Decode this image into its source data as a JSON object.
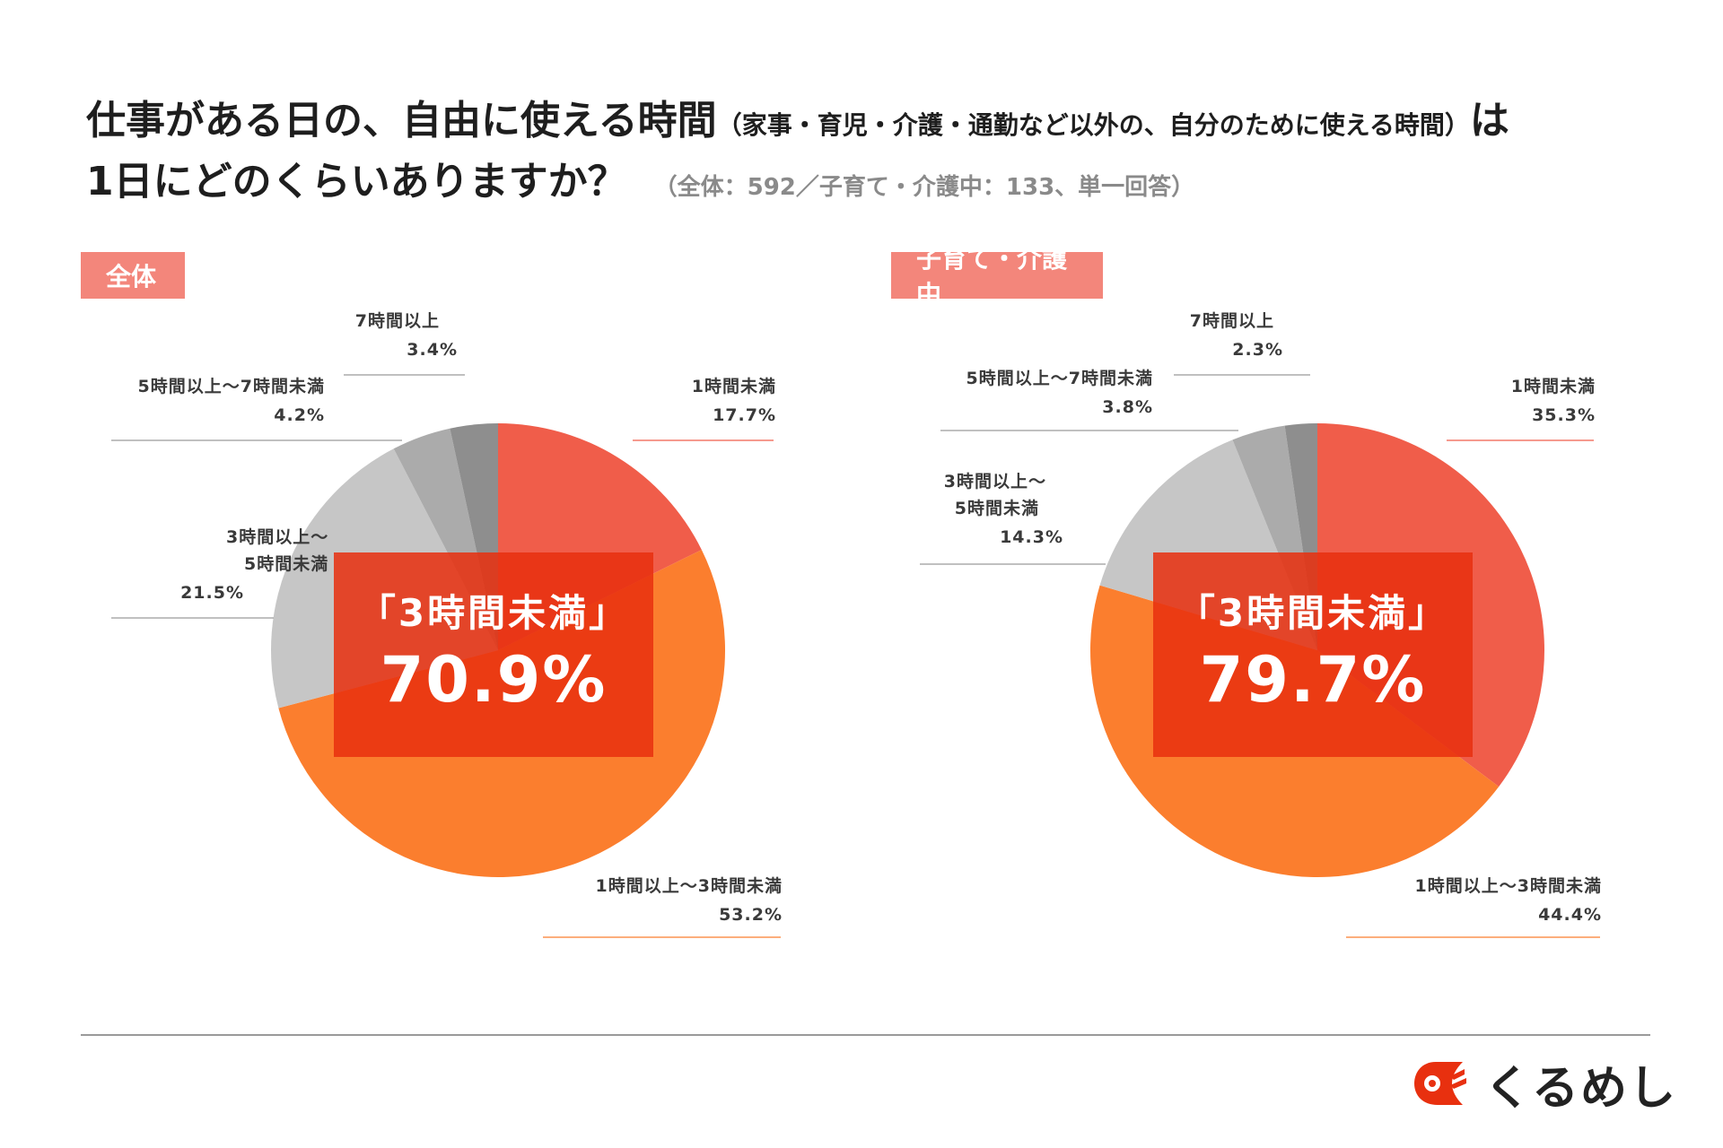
{
  "title": {
    "line1_main": "仕事がある日の、自由に使える時間",
    "line1_paren": "（家事・育児・介護・通勤など以外の、自分のために使える時間）",
    "line1_end": "は",
    "line2": "1日にどのくらいありますか？",
    "subtitle": "（全体：592／子育て・介護中：133、単一回答）"
  },
  "colors": {
    "slice1": "#f05d4a",
    "slice2": "#fb7e2e",
    "slice3": "#c6c6c6",
    "slice4": "#ababab",
    "slice5": "#8e8e8e",
    "badge": "#f3867b",
    "highlight": "#e8300f"
  },
  "chart_data": [
    {
      "type": "pie",
      "title": "全体",
      "categories": [
        "1時間未満",
        "1時間以上～3時間未満",
        "3時間以上～5時間未満",
        "5時間以上～7時間未満",
        "7時間以上"
      ],
      "values": [
        17.7,
        53.2,
        21.5,
        4.2,
        3.4
      ],
      "value_labels": [
        "17.7%",
        "53.2%",
        "21.5%",
        "4.2%",
        "3.4%"
      ],
      "label_lines": [
        [
          "1時間未満"
        ],
        [
          "1時間以上～3時間未満"
        ],
        [
          "3時間以上～",
          "5時間未満"
        ],
        [
          "5時間以上～7時間未満"
        ],
        [
          "7時間以上"
        ]
      ],
      "highlight_label": "「3時間未満」",
      "highlight_value": "70.9%"
    },
    {
      "type": "pie",
      "title": "子育て・介護中",
      "categories": [
        "1時間未満",
        "1時間以上～3時間未満",
        "3時間以上～5時間未満",
        "5時間以上～7時間未満",
        "7時間以上"
      ],
      "values": [
        35.3,
        44.4,
        14.3,
        3.8,
        2.3
      ],
      "value_labels": [
        "35.3%",
        "44.4%",
        "14.3%",
        "3.8%",
        "2.3%"
      ],
      "label_lines": [
        [
          "1時間未満"
        ],
        [
          "1時間以上～3時間未満"
        ],
        [
          "3時間以上～",
          "5時間未満"
        ],
        [
          "5時間以上～7時間未満"
        ],
        [
          "7時間以上"
        ]
      ],
      "highlight_label": "「3時間未満」",
      "highlight_value": "79.7%"
    }
  ],
  "logo": {
    "text": "くるめし",
    "icon": "kurumeshi-logo-icon"
  }
}
